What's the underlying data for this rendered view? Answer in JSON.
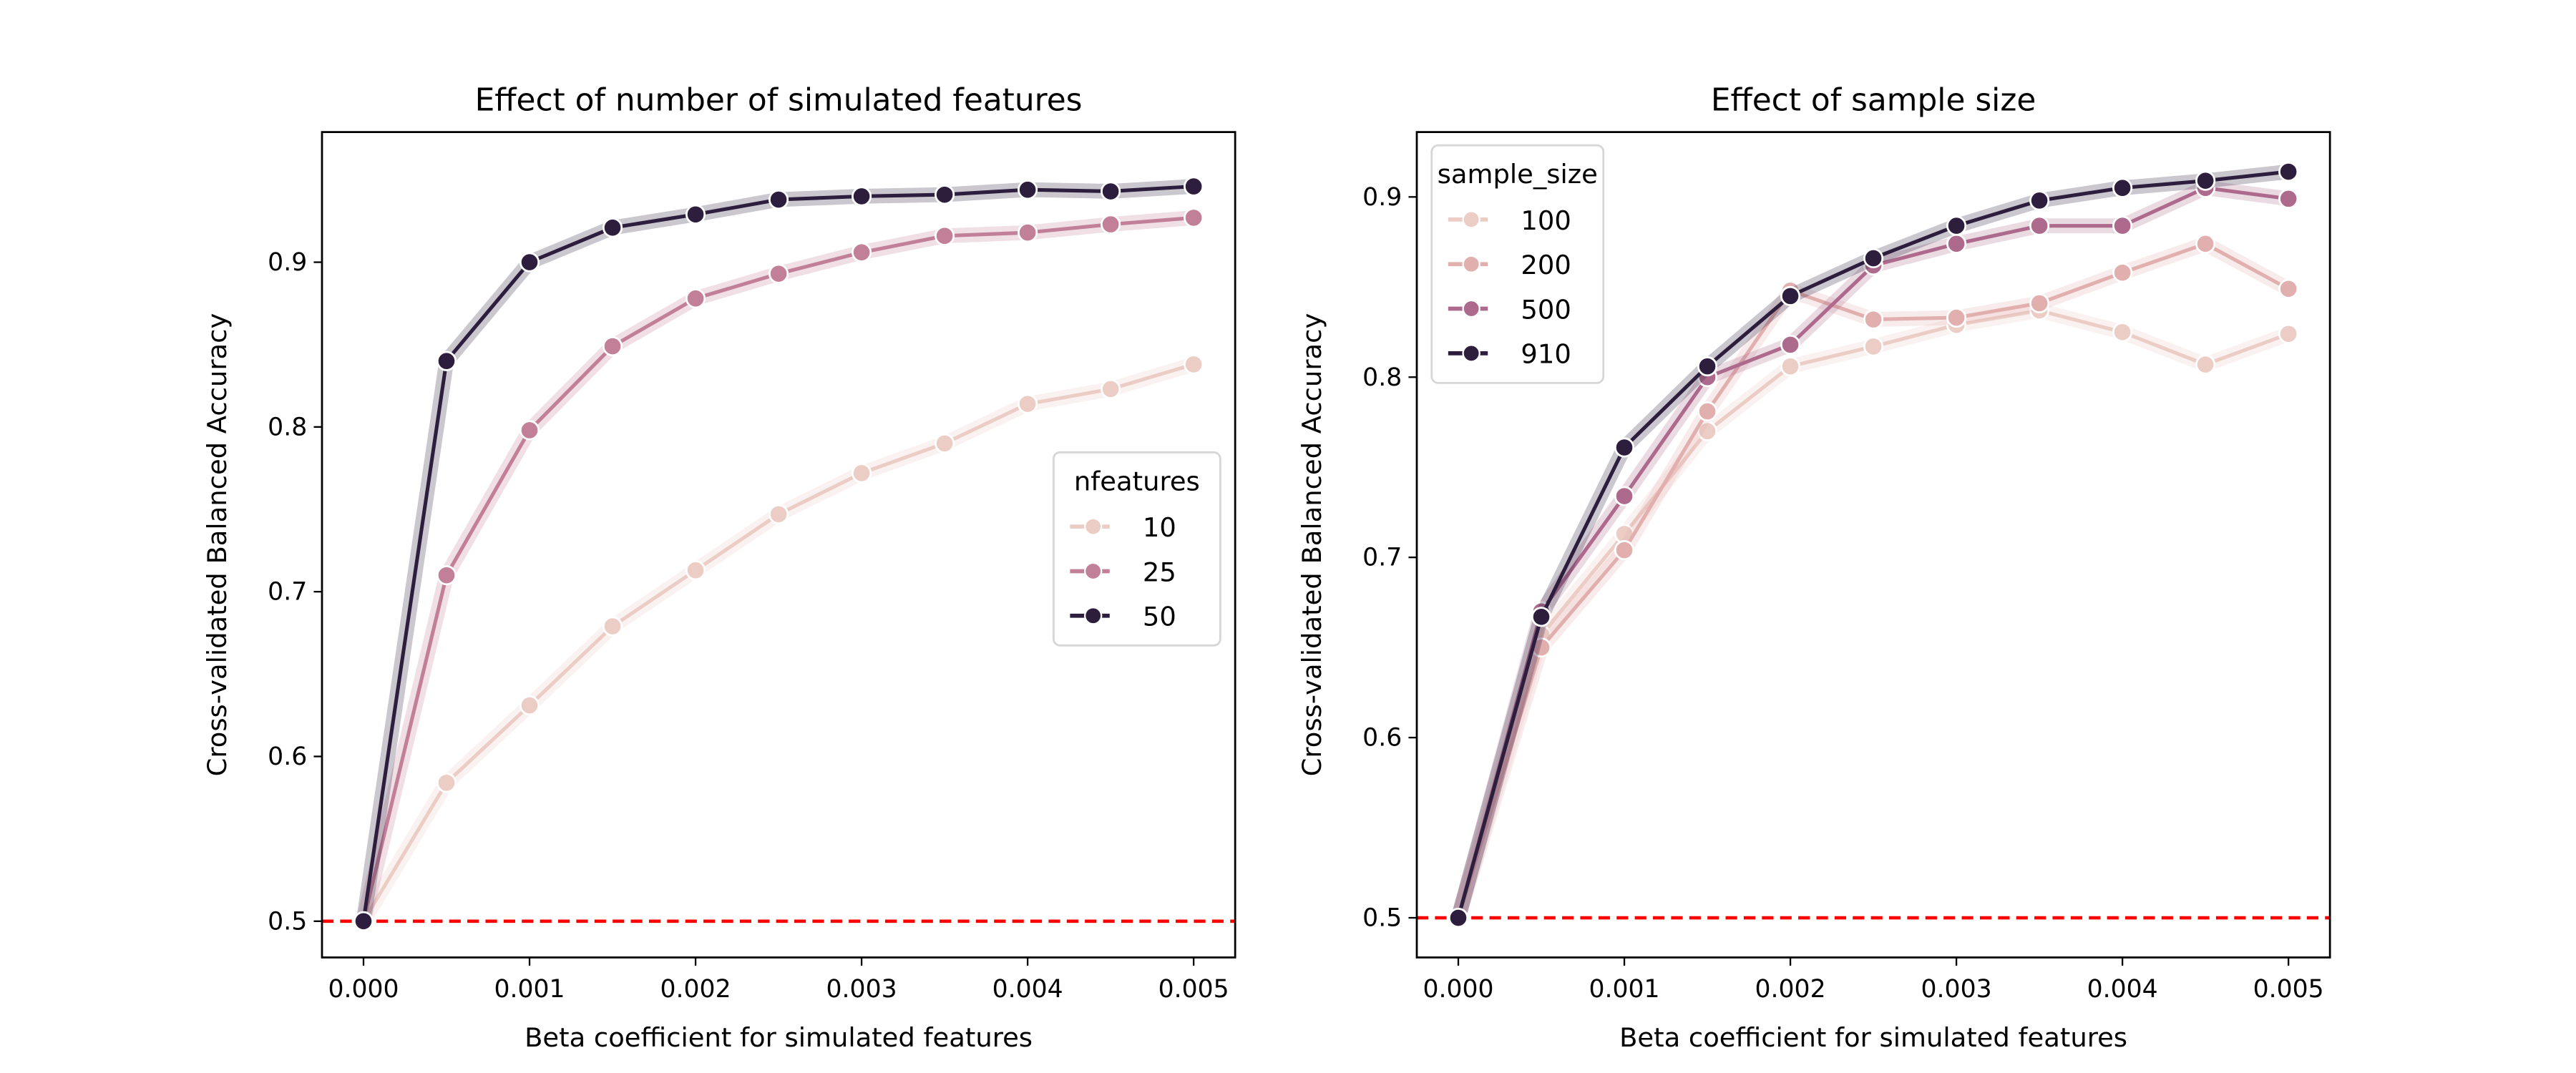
{
  "chart_data": [
    {
      "type": "line",
      "title": "Effect of number of simulated features",
      "xlabel": "Beta coefficient for simulated features",
      "ylabel": "Cross-validated Balanced Accuracy",
      "xlim": [
        -0.00025,
        0.00525
      ],
      "ylim": [
        0.478,
        0.979
      ],
      "xticks": [
        "0.000",
        "0.001",
        "0.002",
        "0.003",
        "0.004",
        "0.005"
      ],
      "yticks": [
        "0.5",
        "0.6",
        "0.7",
        "0.8",
        "0.9"
      ],
      "x": [
        0,
        0.0005,
        0.001,
        0.0015,
        0.002,
        0.0025,
        0.003,
        0.0035,
        0.004,
        0.0045,
        0.005
      ],
      "legend_title": "nfeatures",
      "legend_position": "center-right",
      "reference_line": {
        "y": 0.5,
        "color": "#ff0000",
        "style": "dashed"
      },
      "series": [
        {
          "name": "10",
          "color": "#ebcdc6",
          "values": [
            0.5,
            0.584,
            0.631,
            0.679,
            0.713,
            0.747,
            0.772,
            0.79,
            0.814,
            0.823,
            0.838
          ]
        },
        {
          "name": "25",
          "color": "#c27f98",
          "values": [
            0.5,
            0.71,
            0.798,
            0.849,
            0.878,
            0.893,
            0.906,
            0.916,
            0.918,
            0.923,
            0.927
          ]
        },
        {
          "name": "50",
          "color": "#2d1e3e",
          "values": [
            0.5,
            0.84,
            0.9,
            0.921,
            0.929,
            0.938,
            0.94,
            0.941,
            0.944,
            0.943,
            0.946
          ]
        }
      ]
    },
    {
      "type": "line",
      "title": "Effect of sample size",
      "xlabel": "Beta coefficient for simulated features",
      "ylabel": "Cross-validated Balanced Accuracy",
      "xlim": [
        -0.00025,
        0.00525
      ],
      "ylim": [
        0.478,
        0.936
      ],
      "xticks": [
        "0.000",
        "0.001",
        "0.002",
        "0.003",
        "0.004",
        "0.005"
      ],
      "yticks": [
        "0.5",
        "0.6",
        "0.7",
        "0.8",
        "0.9"
      ],
      "x": [
        0,
        0.0005,
        0.001,
        0.0015,
        0.002,
        0.0025,
        0.003,
        0.0035,
        0.004,
        0.0045,
        0.005
      ],
      "legend_title": "sample_size",
      "legend_position": "upper-left",
      "reference_line": {
        "y": 0.5,
        "color": "#ff0000",
        "style": "dashed"
      },
      "series": [
        {
          "name": "100",
          "color": "#ebcdc6",
          "values": [
            0.5,
            0.657,
            0.713,
            0.77,
            0.806,
            0.817,
            0.829,
            0.837,
            0.825,
            0.807,
            0.824
          ]
        },
        {
          "name": "200",
          "color": "#e2afaf",
          "values": [
            0.5,
            0.65,
            0.704,
            0.781,
            0.848,
            0.832,
            0.833,
            0.841,
            0.858,
            0.874,
            0.849
          ]
        },
        {
          "name": "500",
          "color": "#ad6a8c",
          "values": [
            0.5,
            0.67,
            0.734,
            0.8,
            0.818,
            0.862,
            0.874,
            0.884,
            0.884,
            0.905,
            0.899
          ]
        },
        {
          "name": "910",
          "color": "#2d1e3e",
          "values": [
            0.5,
            0.667,
            0.761,
            0.806,
            0.845,
            0.866,
            0.884,
            0.898,
            0.905,
            0.909,
            0.914
          ]
        }
      ]
    }
  ]
}
